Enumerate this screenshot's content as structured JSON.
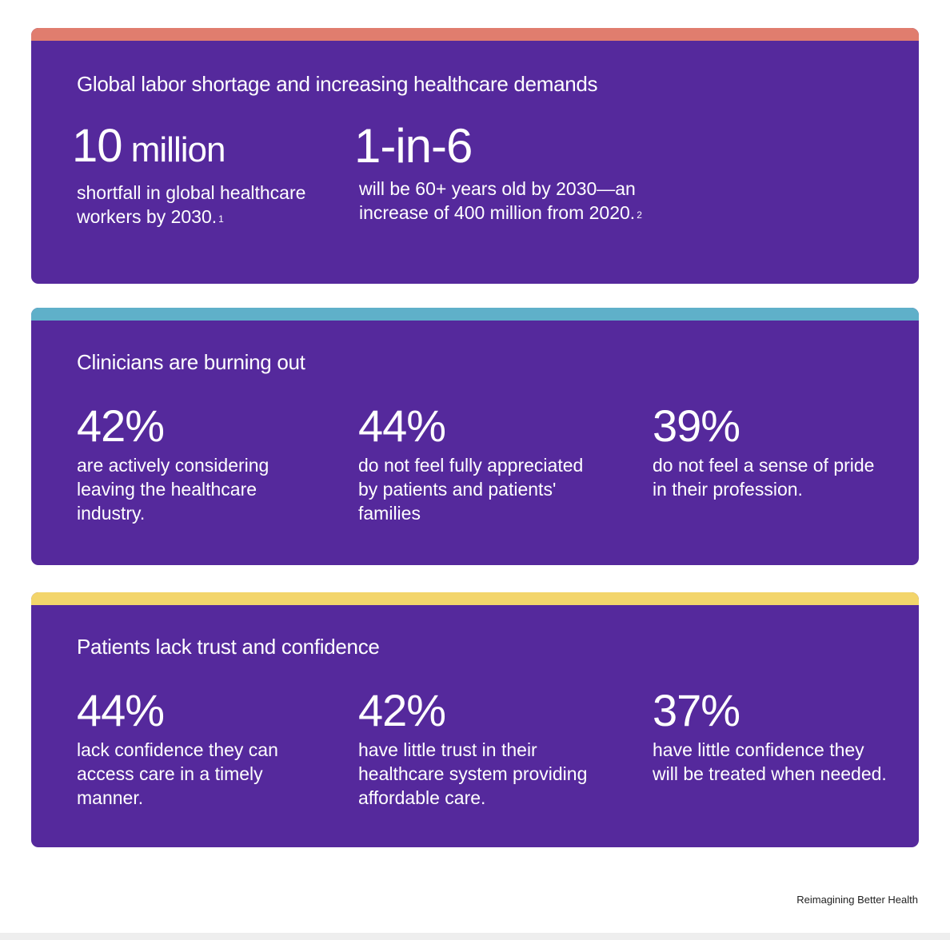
{
  "colors": {
    "card_background": "#55299c",
    "accent_coral": "#e07d6e",
    "accent_teal": "#5fb0c9",
    "accent_yellow": "#f3d56b",
    "text": "#ffffff"
  },
  "sections": [
    {
      "title": "Global labor shortage and increasing healthcare demands",
      "stats": [
        {
          "value_number": "10",
          "value_unit": " million",
          "description": "shortfall in global healthcare workers by 2030.",
          "footnote": "1"
        },
        {
          "value": "1-in-6",
          "description": "will be 60+ years old by 2030—an increase of 400 million from 2020.",
          "footnote": "2"
        }
      ]
    },
    {
      "title": "Clinicians are  burning out",
      "stats": [
        {
          "value": "42%",
          "description": "are actively considering leaving the healthcare industry."
        },
        {
          "value": "44%",
          "description": "do not feel fully appreciated by patients and patients' families"
        },
        {
          "value": "39%",
          "description": "do not feel a sense of pride in their profession."
        }
      ]
    },
    {
      "title": "Patients lack trust and confidence",
      "stats": [
        {
          "value": "44%",
          "description": "lack confidence they can access care in a timely manner."
        },
        {
          "value": "42%",
          "description": "have little trust in their healthcare system providing affordable care."
        },
        {
          "value": "37%",
          "description": "have little confidence they will be treated when needed."
        }
      ]
    }
  ],
  "footer": {
    "label": "Reimagining Better Health"
  }
}
